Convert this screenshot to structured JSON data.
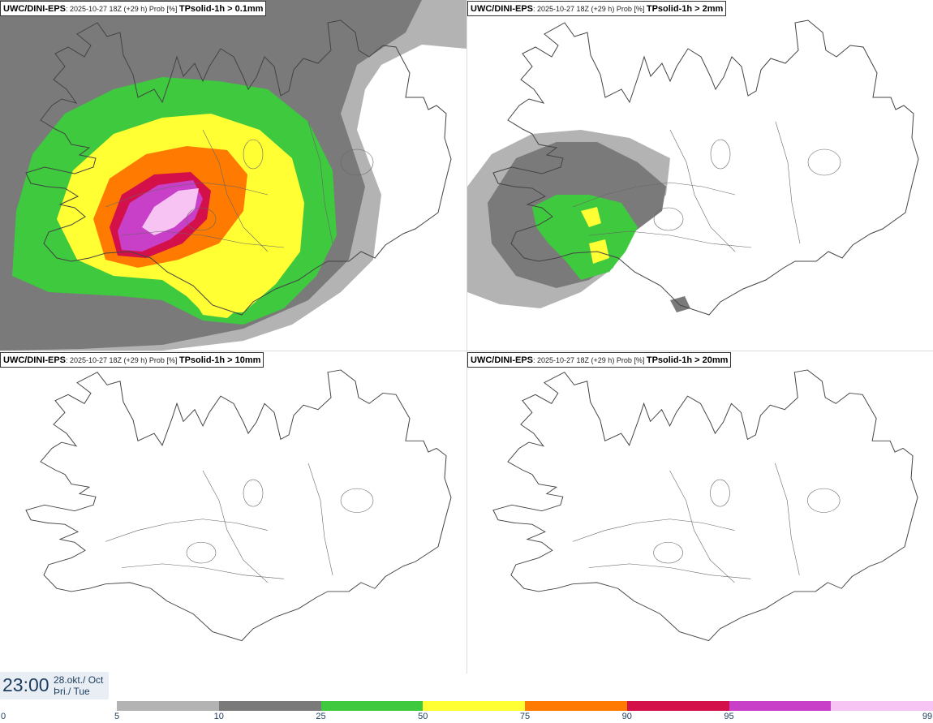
{
  "panels": [
    {
      "model": "UWC/DINI-EPS",
      "run": ": 2025-10-27 18Z (+29 h) Prob [%] ",
      "variable": "TPsolid-1h > 0.1mm"
    },
    {
      "model": "UWC/DINI-EPS",
      "run": ": 2025-10-27 18Z (+29 h) Prob [%] ",
      "variable": "TPsolid-1h > 2mm"
    },
    {
      "model": "UWC/DINI-EPS",
      "run": ": 2025-10-27 18Z (+29 h) Prob [%] ",
      "variable": "TPsolid-1h > 10mm"
    },
    {
      "model": "UWC/DINI-EPS",
      "run": ": 2025-10-27 18Z (+29 h) Prob [%] ",
      "variable": "TPsolid-1h > 20mm"
    }
  ],
  "valid_time": {
    "time": "23:00",
    "date_line1": "28.okt./ Oct",
    "date_line2": "Þri./ Tue"
  },
  "colorbar": {
    "ticks": [
      "0",
      "5",
      "10",
      "25",
      "50",
      "75",
      "90",
      "95",
      "99"
    ],
    "colors": [
      "#ffffff",
      "#b3b3b3",
      "#7a7a7a",
      "#3ec93e",
      "#ffff33",
      "#ff7a00",
      "#d4104a",
      "#c740c7",
      "#f7c3f3"
    ]
  }
}
